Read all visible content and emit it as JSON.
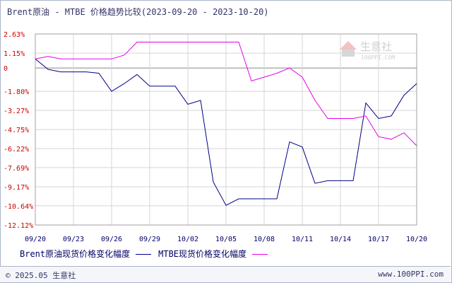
{
  "title": "Brent原油 - MTBE 价格趋势比较(2023-09-20 - 2023-10-20)",
  "legend": {
    "series1_label": "Brent原油现货价格变化幅度",
    "series2_label": "MTBE现货价格变化幅度"
  },
  "watermark": {
    "main": "生意社",
    "sub": "100PPI.COM"
  },
  "footer": {
    "left": "© 2025.05 生意社",
    "right": "www.100PPI.com"
  },
  "colors": {
    "brent": "#00008b",
    "mtbe": "#e600e6",
    "grid": "#d5d5d5",
    "zero": "#888888"
  },
  "chart_data": {
    "type": "line",
    "title": "Brent原油 - MTBE 价格趋势比较(2023-09-20 - 2023-10-20)",
    "yticks": [
      "2.63%",
      "1.15%",
      "0",
      "-1.80%",
      "-3.27%",
      "-4.75%",
      "-6.22%",
      "-7.69%",
      "-9.17%",
      "-10.64%",
      "-12.12%"
    ],
    "ytick_values": [
      2.63,
      1.15,
      0,
      -1.8,
      -3.27,
      -4.75,
      -6.22,
      -7.69,
      -9.17,
      -10.64,
      -12.12
    ],
    "ylim": [
      -12.12,
      2.63
    ],
    "xticks": [
      "09/20",
      "09/23",
      "09/26",
      "09/29",
      "10/02",
      "10/05",
      "10/08",
      "10/11",
      "10/14",
      "10/17",
      "10/20"
    ],
    "xlim": [
      0,
      30
    ],
    "grid": true,
    "series": [
      {
        "name": "Brent原油现货价格变化幅度",
        "points": [
          [
            0,
            0.7
          ],
          [
            1,
            -0.1
          ],
          [
            2,
            -0.3
          ],
          [
            3,
            -0.3
          ],
          [
            4,
            -0.3
          ],
          [
            5,
            -0.4
          ],
          [
            6,
            -1.8
          ],
          [
            7,
            -1.2
          ],
          [
            8,
            -0.5
          ],
          [
            9,
            -1.4
          ],
          [
            10,
            -1.4
          ],
          [
            11,
            -1.4
          ],
          [
            12,
            -2.8
          ],
          [
            13,
            -2.5
          ],
          [
            14,
            -8.8
          ],
          [
            15,
            -10.6
          ],
          [
            16,
            -10.1
          ],
          [
            17,
            -10.1
          ],
          [
            18,
            -10.1
          ],
          [
            19,
            -10.1
          ],
          [
            20,
            -5.7
          ],
          [
            21,
            -6.1
          ],
          [
            22,
            -8.9
          ],
          [
            23,
            -8.7
          ],
          [
            24,
            -8.7
          ],
          [
            25,
            -8.7
          ],
          [
            26,
            -2.7
          ],
          [
            27,
            -3.9
          ],
          [
            28,
            -3.7
          ],
          [
            29,
            -2.1
          ],
          [
            30,
            -1.2
          ]
        ]
      },
      {
        "name": "MTBE现货价格变化幅度",
        "points": [
          [
            0,
            0.7
          ],
          [
            1,
            0.9
          ],
          [
            2,
            0.7
          ],
          [
            3,
            0.7
          ],
          [
            4,
            0.7
          ],
          [
            5,
            0.7
          ],
          [
            6,
            0.7
          ],
          [
            7,
            1.0
          ],
          [
            8,
            2.0
          ],
          [
            9,
            2.0
          ],
          [
            10,
            2.0
          ],
          [
            11,
            2.0
          ],
          [
            12,
            2.0
          ],
          [
            13,
            2.0
          ],
          [
            14,
            2.0
          ],
          [
            15,
            2.0
          ],
          [
            16,
            2.0
          ],
          [
            17,
            -1.0
          ],
          [
            18,
            -0.7
          ],
          [
            19,
            -0.4
          ],
          [
            20,
            0.0
          ],
          [
            21,
            -0.7
          ],
          [
            22,
            -2.5
          ],
          [
            23,
            -3.9
          ],
          [
            24,
            -3.9
          ],
          [
            25,
            -3.9
          ],
          [
            26,
            -3.7
          ],
          [
            27,
            -5.3
          ],
          [
            28,
            -5.5
          ],
          [
            29,
            -5.0
          ],
          [
            30,
            -6.0
          ]
        ]
      }
    ]
  }
}
